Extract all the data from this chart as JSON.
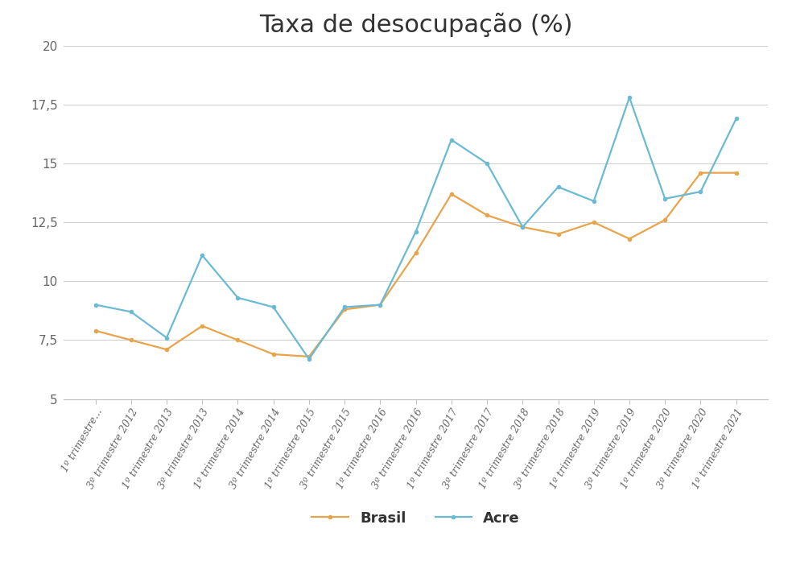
{
  "title": "Taxa de desocupação (%)",
  "labels": [
    "1º trimestre...",
    "3º trimestre 2012",
    "1º trimestre 2013",
    "3º trimestre 2013",
    "1º trimestre 2014",
    "3º trimestre 2014",
    "1º trimestre 2015",
    "3º trimestre 2015",
    "1º trimestre 2016",
    "3º trimestre 2016",
    "1º trimestre 2017",
    "3º trimestre 2017",
    "1º trimestre 2018",
    "3º trimestre 2018",
    "1º trimestre 2019",
    "3º trimestre 2019",
    "1º trimestre 2020",
    "3º trimestre 2020",
    "1º trimestre 2021"
  ],
  "brasil": [
    7.9,
    7.5,
    7.1,
    8.1,
    7.5,
    6.9,
    6.8,
    8.8,
    9.0,
    11.2,
    13.7,
    12.8,
    12.3,
    12.0,
    12.5,
    11.8,
    12.6,
    14.6,
    14.6
  ],
  "acre": [
    9.0,
    8.7,
    7.6,
    11.1,
    9.3,
    8.9,
    6.7,
    8.9,
    9.0,
    12.1,
    16.0,
    15.0,
    12.3,
    14.0,
    13.4,
    17.8,
    13.5,
    13.8,
    16.9
  ],
  "brasil_color": "#E8A44A",
  "acre_color": "#6BBAD4",
  "background_color": "#ffffff",
  "ylim": [
    5,
    20
  ],
  "yticks": [
    5,
    7.5,
    10,
    12.5,
    15,
    17.5,
    20
  ],
  "ytick_labels": [
    "5",
    "7,5",
    "10",
    "12,5",
    "15",
    "17,5",
    "20"
  ],
  "title_fontsize": 22,
  "legend_brasil": "Brasil",
  "legend_acre": "Acre",
  "line_width": 1.6,
  "marker_size": 4
}
